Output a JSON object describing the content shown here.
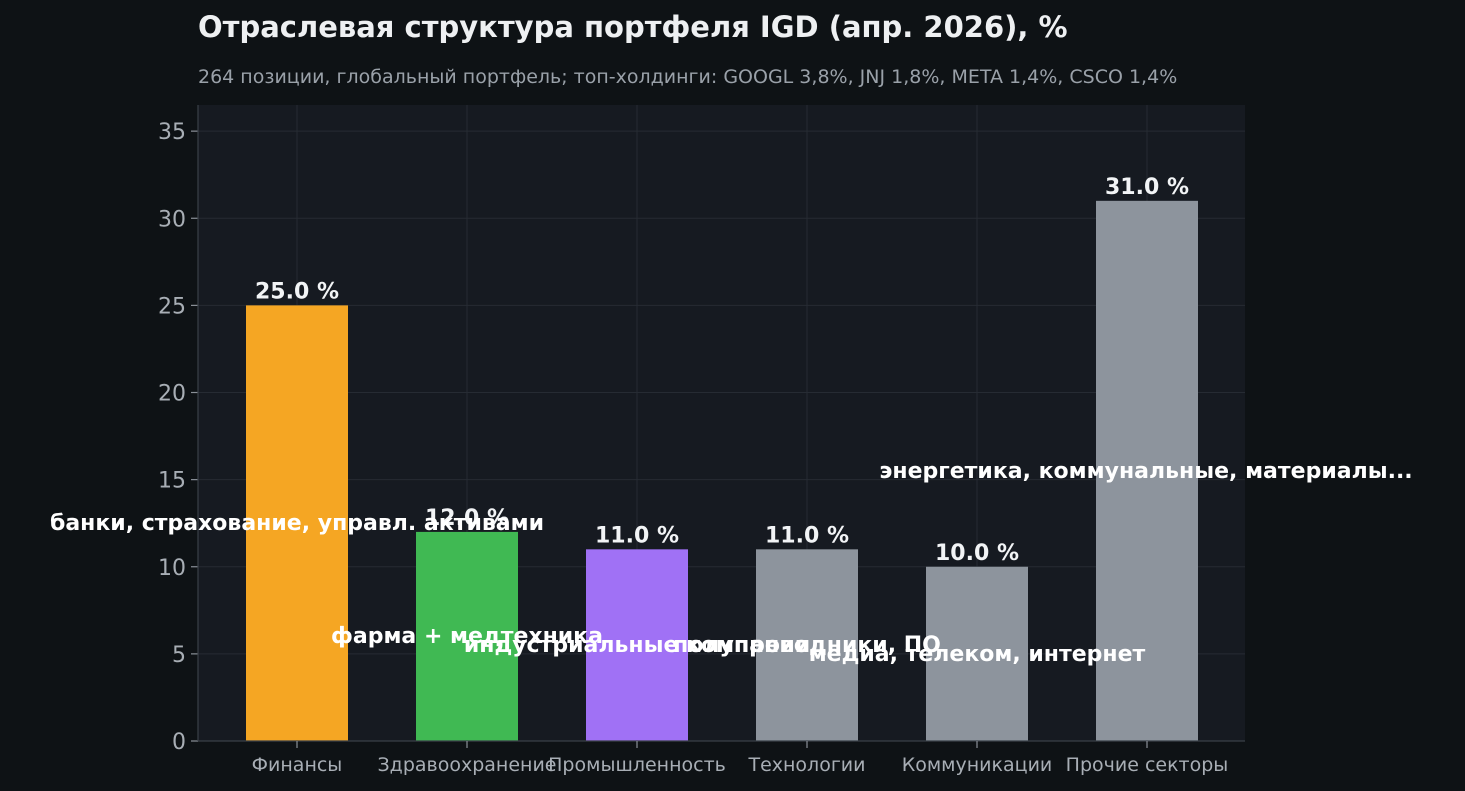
{
  "title": "Отраслевая структура портфеля IGD (апр. 2026), %",
  "subtitle": "264 позиции, глобальный портфель; топ-холдинги: GOOGL 3,8%, JNJ 1,8%, META 1,4%, CSCO 1,4%",
  "chart_data": {
    "type": "bar",
    "categories": [
      "Финансы",
      "Здравоохранение",
      "Промышленность",
      "Технологии",
      "Коммуникации",
      "Прочие секторы"
    ],
    "values": [
      25.0,
      12.0,
      11.0,
      11.0,
      10.0,
      31.0
    ],
    "value_labels": [
      "25.0 %",
      "12.0 %",
      "11.0 %",
      "11.0 %",
      "10.0 %",
      "31.0 %"
    ],
    "annotations": [
      "банки, страхование, управл. активами",
      "фарма + медтехника",
      "индустриальные компании",
      "полупроводники, ПО",
      "медиа, телеком, интернет",
      "энергетика, коммунальные, материалы..."
    ],
    "colors": [
      "#f5a623",
      "#40b953",
      "#a071f5",
      "#8d949d",
      "#8d949d",
      "#8d949d"
    ],
    "ylim": [
      0,
      36.5
    ],
    "yticks": [
      0,
      5,
      10,
      15,
      20,
      25,
      30,
      35
    ],
    "xlabel": "",
    "ylabel": "",
    "grid": true,
    "legend": "none"
  }
}
